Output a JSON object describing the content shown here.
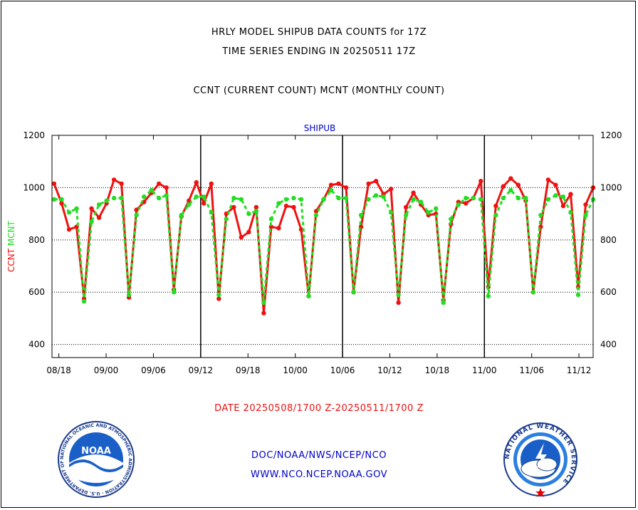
{
  "titles": {
    "line1": "HRLY MODEL SHIPUB DATA COUNTS for 17Z",
    "line2": "TIME SERIES ENDING IN 20250511 17Z",
    "line3": "CCNT (CURRENT COUNT) MCNT (MONTHLY COUNT)"
  },
  "footer": {
    "date_range": "DATE 20250508/1700 Z-20250511/1700 Z",
    "org": "DOC/NOAA/NWS/NCEP/NCO",
    "url": "WWW.NCO.NCEP.NOAA.GOV"
  },
  "logos": {
    "left": "NOAA",
    "left_ring": "NATIONAL OCEANIC AND ATMOSPHERIC ADMINISTRATION · U.S. DEPARTMENT OF COMMERCE",
    "right_ring": "NATIONAL WEATHER SERVICE"
  },
  "colors": {
    "ccnt": "#ee1111",
    "mcnt": "#22dd22",
    "panel_title": "#0000cc",
    "footer_text": "#0000cc",
    "date_text": "#ee1111"
  },
  "chart_data": {
    "type": "line",
    "title": "SHIPUB",
    "xlabel": "",
    "ylabel": "CCNT  MCNT",
    "ylim": [
      350,
      1200
    ],
    "yticks": [
      400,
      600,
      800,
      1000,
      1200
    ],
    "xticks": [
      "08/18",
      "09/00",
      "09/06",
      "09/12",
      "09/18",
      "10/00",
      "10/06",
      "10/12",
      "10/18",
      "11/00",
      "11/06",
      "11/12"
    ],
    "grid": true,
    "x": [
      0,
      1,
      2,
      3,
      4,
      5,
      6,
      7,
      8,
      9,
      10,
      11,
      12,
      13,
      14,
      15,
      16,
      17,
      18,
      19,
      20,
      21,
      22,
      23,
      24,
      25,
      26,
      27,
      28,
      29,
      30,
      31,
      32,
      33,
      34,
      35,
      36,
      37,
      38,
      39,
      40,
      41,
      42,
      43,
      44,
      45,
      46,
      47,
      48,
      49,
      50,
      51,
      52,
      53,
      54,
      55,
      56,
      57,
      58,
      59,
      60,
      61,
      62,
      63,
      64,
      65,
      66,
      67,
      68,
      69,
      70,
      71,
      72
    ],
    "series": [
      {
        "name": "CCNT",
        "values": [
          1015,
          940,
          840,
          850,
          575,
          920,
          885,
          940,
          1030,
          1015,
          580,
          915,
          945,
          980,
          1015,
          1000,
          610,
          890,
          950,
          1020,
          940,
          1015,
          575,
          900,
          925,
          810,
          830,
          925,
          520,
          850,
          845,
          930,
          925,
          840,
          585,
          910,
          955,
          1010,
          1015,
          1000,
          600,
          850,
          1015,
          1025,
          975,
          995,
          560,
          925,
          980,
          935,
          895,
          900,
          570,
          860,
          945,
          940,
          960,
          1025,
          620,
          930,
          1005,
          1035,
          1010,
          950,
          600,
          850,
          1030,
          1010,
          930,
          975,
          620,
          935,
          1000
        ]
      },
      {
        "name": "MCNT",
        "values": [
          955,
          955,
          905,
          920,
          565,
          870,
          935,
          950,
          960,
          960,
          590,
          895,
          965,
          990,
          960,
          970,
          600,
          895,
          935,
          965,
          965,
          905,
          590,
          880,
          960,
          955,
          900,
          910,
          560,
          880,
          940,
          955,
          960,
          955,
          585,
          895,
          955,
          990,
          960,
          960,
          600,
          895,
          955,
          970,
          965,
          905,
          590,
          895,
          955,
          945,
          905,
          920,
          560,
          880,
          935,
          960,
          960,
          955,
          585,
          895,
          960,
          990,
          960,
          960,
          600,
          895,
          955,
          970,
          965,
          905,
          590,
          895,
          955
        ]
      }
    ]
  }
}
